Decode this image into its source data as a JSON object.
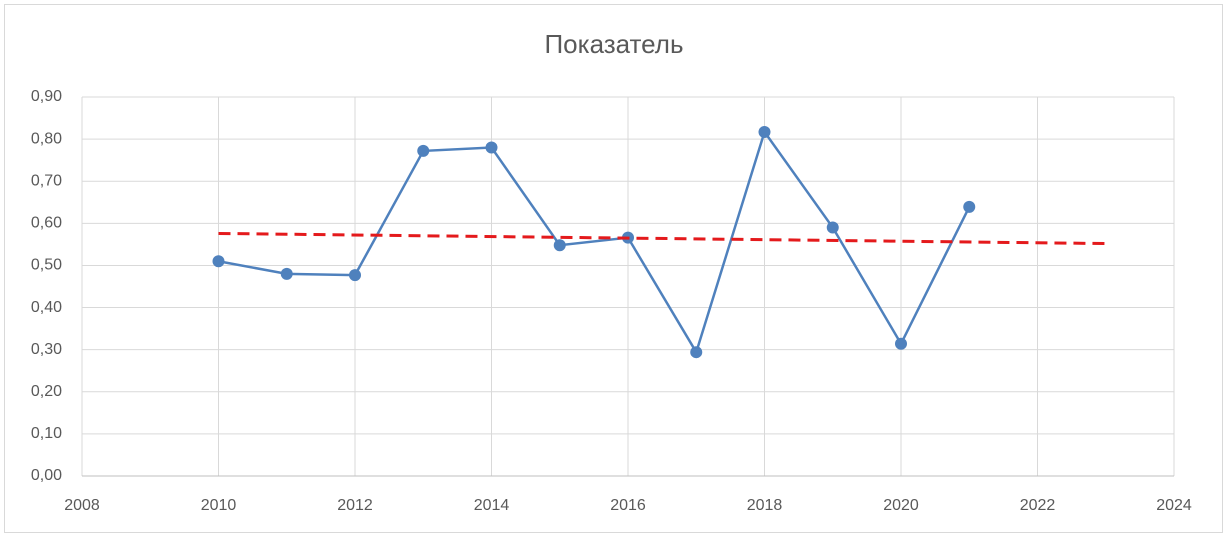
{
  "chart_data": {
    "type": "line",
    "title": "Показатель",
    "series": [
      {
        "x": [
          2010,
          2011,
          2012,
          2013,
          2014,
          2015,
          2016,
          2017,
          2018,
          2019,
          2020,
          2021
        ],
        "values": [
          0.51,
          0.48,
          0.477,
          0.772,
          0.78,
          0.548,
          0.566,
          0.294,
          0.817,
          0.59,
          0.314,
          0.639
        ],
        "color": "#4f81bd",
        "markers": true,
        "dashed": false
      },
      {
        "x": [
          2010,
          2023
        ],
        "values": [
          0.576,
          0.552
        ],
        "color": "#e41a1c",
        "markers": false,
        "dashed": true
      }
    ],
    "xlim": [
      2008,
      2024
    ],
    "xticks": [
      2008,
      2010,
      2012,
      2014,
      2016,
      2018,
      2020,
      2022,
      2024
    ],
    "ylim": [
      0,
      0.9
    ],
    "yticks": [
      {
        "value": 0,
        "label": "0,00"
      },
      {
        "value": 0.1,
        "label": "0,10"
      },
      {
        "value": 0.2,
        "label": "0,20"
      },
      {
        "value": 0.3,
        "label": "0,30"
      },
      {
        "value": 0.4,
        "label": "0,40"
      },
      {
        "value": 0.5,
        "label": "0,50"
      },
      {
        "value": 0.6,
        "label": "0,60"
      },
      {
        "value": 0.7,
        "label": "0,70"
      },
      {
        "value": 0.8,
        "label": "0,80"
      },
      {
        "value": 0.9,
        "label": "0,90"
      }
    ],
    "grid": true
  }
}
